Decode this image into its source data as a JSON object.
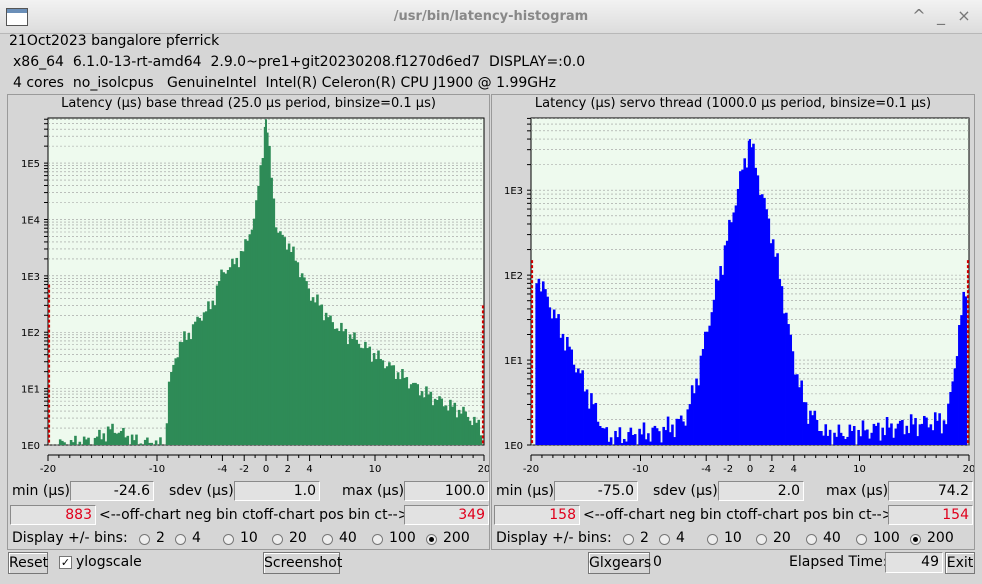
{
  "window": {
    "title": "/usr/bin/latency-histogram",
    "controls": {
      "minimize": "_",
      "maximize": "^",
      "close": "×"
    }
  },
  "sysinfo": {
    "line1": "21Oct2023 bangalore pferrick",
    "line2": "x86_64  6.1.0-13-rt-amd64  2.9.0~pre1+git20230208.f1270d6ed7  DISPLAY=:0.0",
    "line3": "4 cores  no_isolcpus   GenuineIntel  Intel(R) Celeron(R) CPU J1900 @ 1.99GHz"
  },
  "labels": {
    "min": "min (µs)",
    "sdev": "sdev (µs)",
    "max": "max (µs)",
    "neg_bin": "<--off-chart neg bin ct",
    "pos_bin": "off-chart pos bin ct-->",
    "display_bins": "Display +/- bins:"
  },
  "base": {
    "title": "Latency (µs) base thread (25.0 µs period, binsize=0.1 µs)",
    "min": "-24.6",
    "sdev": "1.0",
    "max": "100.0",
    "neg_ct": "883",
    "pos_ct": "349"
  },
  "servo": {
    "title": "Latency (µs) servo thread (1000.0 µs period, binsize=0.1 µs)",
    "min": "-75.0",
    "sdev": "2.0",
    "max": "74.2",
    "neg_ct": "158",
    "pos_ct": "154"
  },
  "bin_options": [
    "2",
    "4",
    "10",
    "20",
    "40",
    "100",
    "200"
  ],
  "bin_selected": "200",
  "bottom": {
    "reset": "Reset",
    "ylogscale": "ylogscale",
    "ylogscale_checked": "✓",
    "screenshot": "Screenshot",
    "glxgears": "Glxgears",
    "glxgears_count": "0",
    "elapsed_label": "Elapsed Time:",
    "elapsed_value": "49",
    "exit": "Exit"
  },
  "chart_data": [
    {
      "type": "bar",
      "title": "Latency (µs) base thread (25.0 µs period, binsize=0.1 µs)",
      "xlabel": "",
      "ylabel": "",
      "xlim": [
        -20,
        20
      ],
      "x_ticks": [
        -20,
        -10,
        -4,
        -2,
        0,
        2,
        4,
        10,
        20
      ],
      "yscale": "log",
      "y_ticks": [
        "1E0",
        "1E1",
        "1E2",
        "1E3",
        "1E4",
        "1E5"
      ],
      "bar_color": "#2e8b57",
      "grid": true,
      "peak": {
        "x": 0,
        "y": 600000
      },
      "envelope": [
        {
          "x": -20,
          "y": 700
        },
        {
          "x": -19.9,
          "y": 1
        },
        {
          "x": -16,
          "y": 1.2
        },
        {
          "x": -14,
          "y": 2
        },
        {
          "x": -12,
          "y": 1.2
        },
        {
          "x": -9.2,
          "y": 1
        },
        {
          "x": -9,
          "y": 10
        },
        {
          "x": -8,
          "y": 60
        },
        {
          "x": -7,
          "y": 100
        },
        {
          "x": -6,
          "y": 200
        },
        {
          "x": -5,
          "y": 300
        },
        {
          "x": -4,
          "y": 1200
        },
        {
          "x": -3,
          "y": 1600
        },
        {
          "x": -2,
          "y": 3000
        },
        {
          "x": -1,
          "y": 12000
        },
        {
          "x": 0,
          "y": 600000
        },
        {
          "x": 1,
          "y": 6000
        },
        {
          "x": 2,
          "y": 4000
        },
        {
          "x": 3,
          "y": 1500
        },
        {
          "x": 4,
          "y": 500
        },
        {
          "x": 5,
          "y": 300
        },
        {
          "x": 6,
          "y": 150
        },
        {
          "x": 8,
          "y": 80
        },
        {
          "x": 10,
          "y": 40
        },
        {
          "x": 12,
          "y": 20
        },
        {
          "x": 14,
          "y": 10
        },
        {
          "x": 16,
          "y": 6
        },
        {
          "x": 18,
          "y": 4
        },
        {
          "x": 19.8,
          "y": 2
        },
        {
          "x": 20,
          "y": 300
        }
      ]
    },
    {
      "type": "bar",
      "title": "Latency (µs) servo thread (1000.0 µs period, binsize=0.1 µs)",
      "xlabel": "",
      "ylabel": "",
      "xlim": [
        -20,
        20
      ],
      "x_ticks": [
        -20,
        -10,
        -4,
        -2,
        0,
        2,
        4,
        10,
        20
      ],
      "yscale": "log",
      "y_ticks": [
        "1E0",
        "1E1",
        "1E2",
        "1E3"
      ],
      "bar_color": "#0000ff",
      "grid": true,
      "peak": {
        "x": 0,
        "y": 4000
      },
      "envelope": [
        {
          "x": -20,
          "y": 150
        },
        {
          "x": -13,
          "y": 1.2
        },
        {
          "x": -8,
          "y": 1.5
        },
        {
          "x": -6,
          "y": 2
        },
        {
          "x": -5,
          "y": 5
        },
        {
          "x": -4,
          "y": 20
        },
        {
          "x": -3,
          "y": 80
        },
        {
          "x": -2,
          "y": 300
        },
        {
          "x": -1,
          "y": 1200
        },
        {
          "x": 0,
          "y": 4000
        },
        {
          "x": 1,
          "y": 1000
        },
        {
          "x": 2,
          "y": 300
        },
        {
          "x": 3,
          "y": 60
        },
        {
          "x": 4,
          "y": 10
        },
        {
          "x": 5,
          "y": 3
        },
        {
          "x": 7,
          "y": 1.3
        },
        {
          "x": 18,
          "y": 2
        },
        {
          "x": 20,
          "y": 150
        }
      ]
    }
  ]
}
